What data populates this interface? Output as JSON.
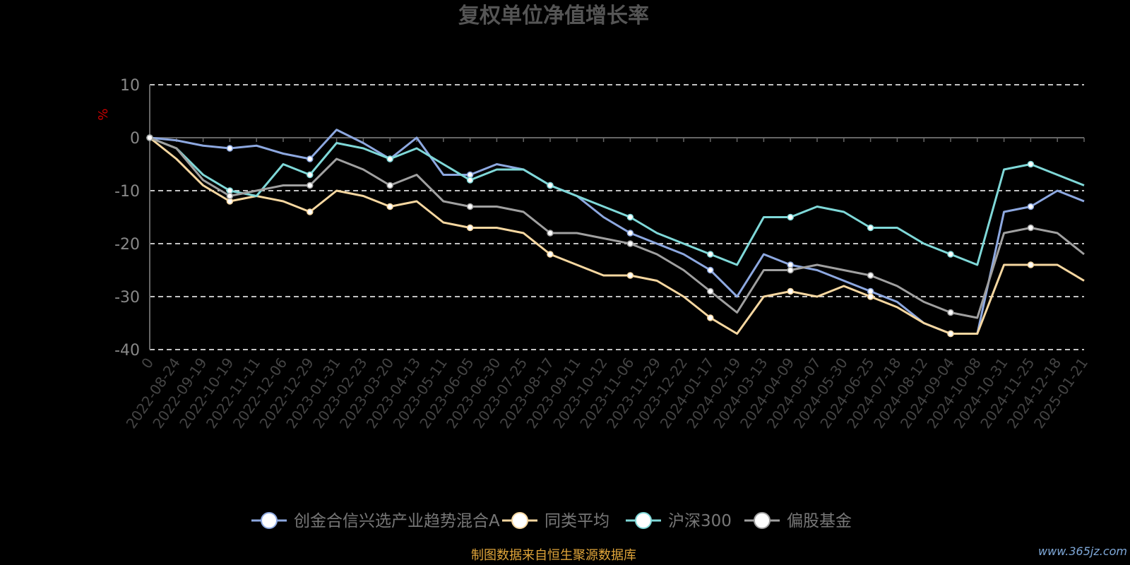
{
  "title": "复权单位净值增长率",
  "source_note": "制图数据来自恒生聚源数据库",
  "watermark": "www.365jz.com",
  "chart_data": {
    "type": "line",
    "title": "复权单位净值增长率",
    "ylabel": "%",
    "ylim": [
      -40,
      10
    ],
    "yticks": [
      10,
      0,
      -10,
      -20,
      -30,
      -40
    ],
    "grid": true,
    "legend_position": "bottom",
    "x": [
      "0",
      "2022-08-24",
      "2022-09-19",
      "2022-10-19",
      "2022-11-11",
      "2022-12-06",
      "2022-12-29",
      "2023-01-31",
      "2023-02-23",
      "2023-03-20",
      "2023-04-13",
      "2023-05-11",
      "2023-06-05",
      "2023-06-30",
      "2023-07-25",
      "2023-08-17",
      "2023-09-11",
      "2023-10-12",
      "2023-11-06",
      "2023-11-29",
      "2023-12-22",
      "2024-01-17",
      "2024-02-19",
      "2024-03-13",
      "2024-04-09",
      "2024-05-07",
      "2024-05-30",
      "2024-06-25",
      "2024-07-18",
      "2024-08-12",
      "2024-09-04",
      "2024-10-08",
      "2024-10-31",
      "2024-11-25",
      "2024-12-18",
      "2025-01-21"
    ],
    "series": [
      {
        "name": "创金合信兴选产业趋势混合A",
        "color": "#8da8e0",
        "values": [
          0,
          -0.5,
          -1.5,
          -2,
          -1.5,
          -3,
          -4,
          1.5,
          -1,
          -4,
          0,
          -7,
          -7,
          -5,
          -6,
          -9,
          -11,
          -15,
          -18,
          -20,
          -22,
          -25,
          -30,
          -22,
          -24,
          -25,
          -27,
          -29,
          -31,
          -35,
          -37,
          -37,
          -14,
          -13,
          -10,
          -12
        ]
      },
      {
        "name": "同类平均",
        "color": "#f6d7a0",
        "values": [
          0,
          -4,
          -9,
          -12,
          -11,
          -12,
          -14,
          -10,
          -11,
          -13,
          -12,
          -16,
          -17,
          -17,
          -18,
          -22,
          -24,
          -26,
          -26,
          -27,
          -30,
          -34,
          -37,
          -30,
          -29,
          -30,
          -28,
          -30,
          -32,
          -35,
          -37,
          -37,
          -24,
          -24,
          -24,
          -27
        ]
      },
      {
        "name": "沪深300",
        "color": "#7fd8d8",
        "values": [
          0,
          -2,
          -7,
          -10,
          -11,
          -5,
          -7,
          -1,
          -2,
          -4,
          -2,
          -5,
          -8,
          -6,
          -6,
          -9,
          -11,
          -13,
          -15,
          -18,
          -20,
          -22,
          -24,
          -15,
          -15,
          -13,
          -14,
          -17,
          -17,
          -20,
          -22,
          -24,
          -6,
          -5,
          -7,
          -9
        ]
      },
      {
        "name": "偏股基金",
        "color": "#a0a0a0",
        "values": [
          0,
          -2,
          -8,
          -11,
          -10,
          -9,
          -9,
          -4,
          -6,
          -9,
          -7,
          -12,
          -13,
          -13,
          -14,
          -18,
          -18,
          -19,
          -20,
          -22,
          -25,
          -29,
          -33,
          -25,
          -25,
          -24,
          -25,
          -26,
          -28,
          -31,
          -33,
          -34,
          -18,
          -17,
          -18,
          -22
        ]
      }
    ]
  },
  "legend": [
    {
      "label": "创金合信兴选产业趋势混合A",
      "color": "#8da8e0",
      "icon": "circle-marker-icon"
    },
    {
      "label": "同类平均",
      "color": "#f6d7a0",
      "icon": "circle-marker-icon"
    },
    {
      "label": "沪深300",
      "color": "#7fd8d8",
      "icon": "circle-marker-icon"
    },
    {
      "label": "偏股基金",
      "color": "#a0a0a0",
      "icon": "circle-marker-icon"
    }
  ]
}
